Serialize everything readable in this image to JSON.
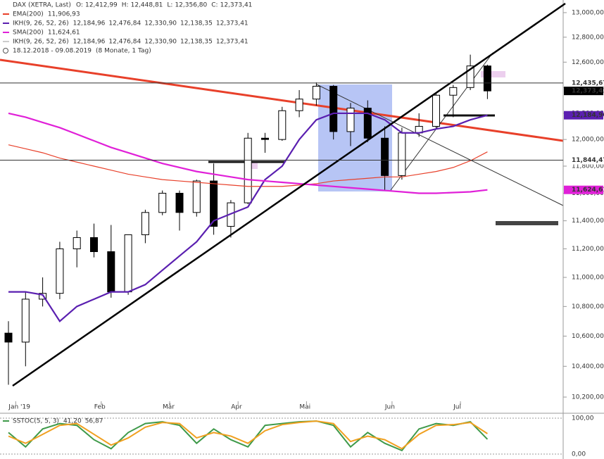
{
  "chart_data": [
    {
      "type": "candlestick",
      "title": "DAX (XETRA, Last)",
      "quote": [
        {
          "key": "O:",
          "value": 12412.99,
          "label": "12,412,99"
        },
        {
          "key": "H:",
          "value": 12448.81,
          "label": "12,448,81"
        },
        {
          "key": "L:",
          "value": 12356.8,
          "label": "12,356,80"
        },
        {
          "key": "C:",
          "value": 12373.41,
          "label": "12,373,41"
        }
      ],
      "date_range": "18.12.2018 - 09.08.2019",
      "period": "(8 Monate, 1 Tag)",
      "categories": [
        null,
        "Jan '19",
        null,
        null,
        null,
        null,
        "Feb",
        null,
        null,
        null,
        "Mär",
        null,
        null,
        null,
        "Apr",
        null,
        null,
        null,
        "Mai",
        null,
        null,
        null,
        null,
        "Jun",
        null,
        null,
        null,
        "Jul",
        null
      ],
      "open": [
        10620,
        10560,
        10850,
        10890,
        11200,
        11280,
        11180,
        10900,
        11300,
        11460,
        11600,
        11460,
        11690,
        11360,
        11530,
        12010,
        12000,
        12220,
        12310,
        12410,
        12060,
        12240,
        12010,
        11730,
        12050,
        12100,
        12340,
        12400,
        12570
      ],
      "high": [
        10700,
        10900,
        11000,
        11250,
        11330,
        11380,
        11370,
        11300,
        11480,
        11620,
        11620,
        11700,
        11820,
        11550,
        12050,
        12050,
        12250,
        12380,
        12440,
        12420,
        12280,
        12300,
        12100,
        12090,
        12200,
        12360,
        12420,
        12660,
        12580
      ],
      "low": [
        10280,
        10400,
        10800,
        10850,
        11070,
        11140,
        10860,
        10880,
        11240,
        11440,
        11330,
        11430,
        11300,
        11280,
        11520,
        11900,
        11990,
        12170,
        12260,
        12000,
        11950,
        11980,
        11620,
        11700,
        12020,
        12080,
        12170,
        12380,
        12310
      ],
      "close": [
        10560,
        10850,
        10890,
        11200,
        11280,
        11180,
        10900,
        11300,
        11460,
        11600,
        11460,
        11690,
        11360,
        11530,
        12010,
        12000,
        12220,
        12310,
        12410,
        12060,
        12240,
        12010,
        11730,
        12050,
        12100,
        12340,
        12400,
        12570,
        12373.41
      ],
      "up_color": "#ffffff",
      "down_color": "#000000",
      "series": [
        {
          "name": "EMA(200)",
          "color": "#e8402a",
          "legend_values": [
            "11,906,93"
          ],
          "values": [
            11960,
            11930,
            11900,
            11860,
            11830,
            11800,
            11770,
            11740,
            11720,
            11700,
            11690,
            11680,
            11670,
            11660,
            11650,
            11650,
            11650,
            11660,
            11670,
            11690,
            11700,
            11710,
            11720,
            11720,
            11740,
            11760,
            11790,
            11840,
            11906.93
          ]
        },
        {
          "name": "IKH(9, 26, 52, 26)",
          "color": "#5a1fb0",
          "legend_values": [
            "12,184,96",
            "12,476,84",
            "12,330,90",
            "12,138,35",
            "12,373,41"
          ],
          "values": [
            10900,
            10900,
            10880,
            10700,
            10800,
            10850,
            10900,
            10900,
            10950,
            11050,
            11150,
            11250,
            11400,
            11450,
            11500,
            11700,
            11800,
            12000,
            12150,
            12200,
            12200,
            12200,
            12150,
            12050,
            12050,
            12080,
            12100,
            12150,
            12184.96
          ]
        },
        {
          "name": "SMA(200)",
          "color": "#e020d8",
          "legend_values": [
            "11,624,61"
          ],
          "values": [
            12200,
            12170,
            12130,
            12090,
            12040,
            11990,
            11940,
            11900,
            11860,
            11820,
            11790,
            11760,
            11740,
            11720,
            11700,
            11690,
            11680,
            11670,
            11660,
            11650,
            11640,
            11630,
            11620,
            11610,
            11600,
            11600,
            11605,
            11610,
            11624.61
          ]
        }
      ],
      "faded_legend": {
        "name": "IKH(9, 26, 52, 26)",
        "values": [
          "12,184,96",
          "12,476,84",
          "12,330,90",
          "12,138,35",
          "12,373,41"
        ]
      },
      "log_scale": true,
      "ylim": [
        10173,
        13104
      ],
      "yticks": [
        {
          "value": 10200,
          "label": "10,200,00"
        },
        {
          "value": 10400,
          "label": "10,400,00"
        },
        {
          "value": 10600,
          "label": "10,600,00"
        },
        {
          "value": 10800,
          "label": "10,800,00"
        },
        {
          "value": 11000,
          "label": "11,000,00"
        },
        {
          "value": 11200,
          "label": "11,200,00"
        },
        {
          "value": 11400,
          "label": "11,400,00"
        },
        {
          "value": 11600,
          "label": "11,600,00"
        },
        {
          "value": 11800,
          "label": "11,800,00"
        },
        {
          "value": 12000,
          "label": "12,000,00"
        },
        {
          "value": 12200,
          "label": "12,200,00"
        },
        {
          "value": 12400,
          "label": "12,400,00"
        },
        {
          "value": 12600,
          "label": "12,600,00"
        },
        {
          "value": 12800,
          "label": "12,800,00"
        },
        {
          "value": 13000,
          "label": "13,000,00"
        }
      ],
      "price_tags": [
        {
          "value": 12435.67,
          "label": "12,435,67",
          "color": "#ffffff",
          "text_color": "#000000",
          "line": true
        },
        {
          "value": 12373.41,
          "label": "12,373,41",
          "color": "#000000",
          "text_color": "#ffffff",
          "line": false
        },
        {
          "value": 12184.96,
          "label": "12,184,96",
          "color": "#5a1fb0",
          "text_color": "#ffffff",
          "line": false
        },
        {
          "value": 11844.47,
          "label": "11,844,47",
          "color": "#ffffff",
          "text_color": "#000000",
          "line": true
        },
        {
          "value": 11624.61,
          "label": "11,624,61",
          "color": "#e020d8",
          "text_color": "#ffffff",
          "line": false
        }
      ]
    },
    {
      "type": "line",
      "title": "SSTOC(5, 5, 3)",
      "series": [
        {
          "color": "#3f9a4a",
          "legend_values": [
            "41,20"
          ],
          "values": [
            60,
            20,
            70,
            85,
            80,
            40,
            15,
            60,
            85,
            90,
            80,
            30,
            70,
            40,
            20,
            80,
            85,
            90,
            92,
            80,
            20,
            60,
            30,
            10,
            70,
            85,
            80,
            90,
            41.2
          ]
        },
        {
          "color": "#f0a020",
          "legend_values": [
            "56,87"
          ],
          "values": [
            50,
            30,
            55,
            80,
            85,
            55,
            25,
            45,
            75,
            88,
            85,
            45,
            60,
            50,
            30,
            65,
            82,
            88,
            92,
            85,
            35,
            50,
            40,
            15,
            55,
            80,
            82,
            88,
            56.87
          ]
        }
      ],
      "ylim": [
        0,
        100
      ],
      "yticks": [
        {
          "value": 0,
          "label": "0,00"
        },
        {
          "value": 100,
          "label": "100,00"
        }
      ]
    }
  ]
}
